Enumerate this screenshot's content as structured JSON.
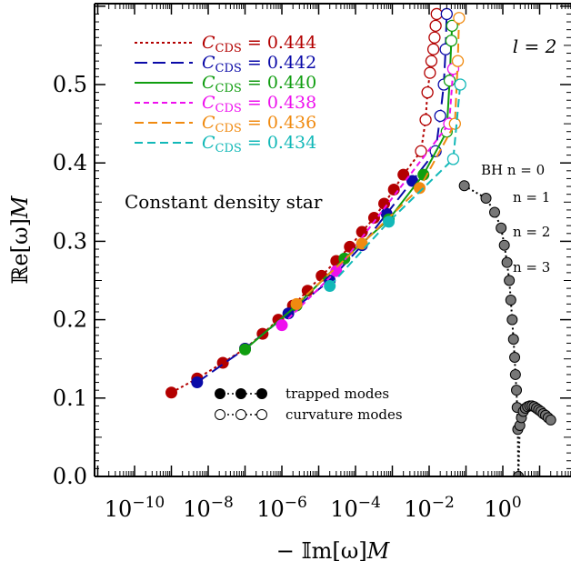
{
  "chart_data": {
    "type": "scatter",
    "xlabel": "− 𝕀m[ω]𝑀",
    "ylabel": "ℝe[ω]𝑀",
    "xscale": "log",
    "xlim": [
      1e-10,
      100
    ],
    "ylim": [
      0,
      0.6
    ],
    "x_ticks": [
      {
        "value": 1e-10,
        "base": "10",
        "exp": "−10"
      },
      {
        "value": 1e-08,
        "base": "10",
        "exp": "−8"
      },
      {
        "value": 1e-06,
        "base": "10",
        "exp": "−6"
      },
      {
        "value": 0.0001,
        "base": "10",
        "exp": "−4"
      },
      {
        "value": 0.01,
        "base": "10",
        "exp": "−2"
      },
      {
        "value": 1,
        "base": "10",
        "exp": "0"
      }
    ],
    "y_ticks": [
      {
        "value": 0.0,
        "label": "0.0"
      },
      {
        "value": 0.1,
        "label": "0.1"
      },
      {
        "value": 0.2,
        "label": "0.2"
      },
      {
        "value": 0.3,
        "label": "0.3"
      },
      {
        "value": 0.4,
        "label": "0.4"
      },
      {
        "value": 0.5,
        "label": "0.5"
      }
    ],
    "legend_placement": "top-left",
    "annotations": {
      "l_label": "l = 2",
      "star_label": "Constant density star",
      "bh_labels": [
        "BH n = 0",
        "n = 1",
        "n = 2",
        "n = 3"
      ],
      "marker_legend": [
        "trapped modes",
        "curvature modes"
      ]
    },
    "series": [
      {
        "name_prefix": "C",
        "name_sub": "CDS",
        "name_value": " = 0.444",
        "color": "#b30000",
        "dash": "3,3",
        "trapped": [
          [
            1e-09,
            0.107
          ],
          [
            5e-09,
            0.125
          ],
          [
            2.5e-08,
            0.145
          ],
          [
            1e-07,
            0.163
          ],
          [
            3e-07,
            0.182
          ],
          [
            8e-07,
            0.2
          ],
          [
            2e-06,
            0.218
          ],
          [
            5e-06,
            0.237
          ],
          [
            1.2e-05,
            0.256
          ],
          [
            3e-05,
            0.275
          ],
          [
            7e-05,
            0.293
          ],
          [
            0.00015,
            0.312
          ],
          [
            0.00032,
            0.33
          ],
          [
            0.0006,
            0.348
          ],
          [
            0.0011,
            0.366
          ],
          [
            0.002,
            0.385
          ]
        ],
        "curvature": [
          [
            0.006,
            0.415
          ],
          [
            0.008,
            0.455
          ],
          [
            0.009,
            0.49
          ],
          [
            0.0105,
            0.515
          ],
          [
            0.0115,
            0.53
          ],
          [
            0.013,
            0.545
          ],
          [
            0.014,
            0.56
          ],
          [
            0.015,
            0.575
          ],
          [
            0.016,
            0.59
          ]
        ]
      },
      {
        "name_prefix": "C",
        "name_sub": "CDS",
        "name_value": " = 0.442",
        "color": "#0a0aa8",
        "dash": "14,6",
        "trapped": [
          [
            5e-09,
            0.12
          ],
          [
            1e-07,
            0.163
          ],
          [
            1.5e-06,
            0.208
          ],
          [
            2e-05,
            0.25
          ],
          [
            0.00015,
            0.295
          ],
          [
            0.0007,
            0.335
          ],
          [
            0.0035,
            0.377
          ]
        ],
        "curvature": [
          [
            0.015,
            0.415
          ],
          [
            0.02,
            0.46
          ],
          [
            0.025,
            0.5
          ],
          [
            0.028,
            0.545
          ],
          [
            0.03,
            0.59
          ]
        ]
      },
      {
        "name_prefix": "C",
        "name_sub": "CDS",
        "name_value": " = 0.440",
        "color": "#109e10",
        "dash": "",
        "trapped": [
          [
            1e-07,
            0.162
          ],
          [
            2.5e-06,
            0.218
          ],
          [
            5e-05,
            0.278
          ],
          [
            0.0008,
            0.328
          ],
          [
            0.007,
            0.385
          ]
        ],
        "curvature": [
          [
            0.03,
            0.44
          ],
          [
            0.036,
            0.505
          ],
          [
            0.04,
            0.556
          ],
          [
            0.042,
            0.575
          ]
        ]
      },
      {
        "name_prefix": "C",
        "name_sub": "CDS",
        "name_value": " = 0.438",
        "color": "#ee10ee",
        "dash": "6,4",
        "trapped": [
          [
            1e-06,
            0.193
          ],
          [
            3e-05,
            0.262
          ]
        ],
        "curvature": [
          [
            0.035,
            0.45
          ],
          [
            0.045,
            0.52
          ]
        ]
      },
      {
        "name_prefix": "C",
        "name_sub": "CDS",
        "name_value": " = 0.436",
        "color": "#f08a10",
        "dash": "10,5",
        "trapped": [
          [
            2.5e-06,
            0.22
          ],
          [
            0.00015,
            0.297
          ],
          [
            0.0055,
            0.368
          ]
        ],
        "curvature": [
          [
            0.05,
            0.45
          ],
          [
            0.06,
            0.53
          ],
          [
            0.065,
            0.585
          ]
        ]
      },
      {
        "name_prefix": "C",
        "name_sub": "CDS",
        "name_value": " = 0.434",
        "color": "#12b8b8",
        "dash": "9,5",
        "trapped": [
          [
            2e-05,
            0.243
          ],
          [
            0.0008,
            0.325
          ]
        ],
        "curvature": [
          [
            0.045,
            0.405
          ],
          [
            0.07,
            0.5
          ]
        ]
      }
    ],
    "black_hole_modes": {
      "name": "BH",
      "color": "#444444",
      "points": [
        [
          0.09,
          0.371
        ],
        [
          0.35,
          0.355
        ],
        [
          0.6,
          0.337
        ],
        [
          0.9,
          0.317
        ],
        [
          1.1,
          0.295
        ],
        [
          1.3,
          0.273
        ],
        [
          1.5,
          0.25
        ],
        [
          1.65,
          0.225
        ],
        [
          1.8,
          0.2
        ],
        [
          1.95,
          0.175
        ],
        [
          2.1,
          0.152
        ],
        [
          2.2,
          0.13
        ],
        [
          2.35,
          0.11
        ],
        [
          2.45,
          0.088
        ],
        [
          2.55,
          0.06
        ],
        [
          2.65,
          0.0
        ],
        [
          2.9,
          0.065
        ],
        [
          3.2,
          0.075
        ],
        [
          3.6,
          0.083
        ],
        [
          4.1,
          0.087
        ],
        [
          4.7,
          0.089
        ],
        [
          5.4,
          0.09
        ],
        [
          6.2,
          0.09
        ],
        [
          7.1,
          0.089
        ],
        [
          8.2,
          0.087
        ],
        [
          9.4,
          0.085
        ],
        [
          10.8,
          0.083
        ],
        [
          12.5,
          0.08
        ],
        [
          14.5,
          0.078
        ],
        [
          17,
          0.075
        ],
        [
          20,
          0.072
        ]
      ]
    }
  }
}
